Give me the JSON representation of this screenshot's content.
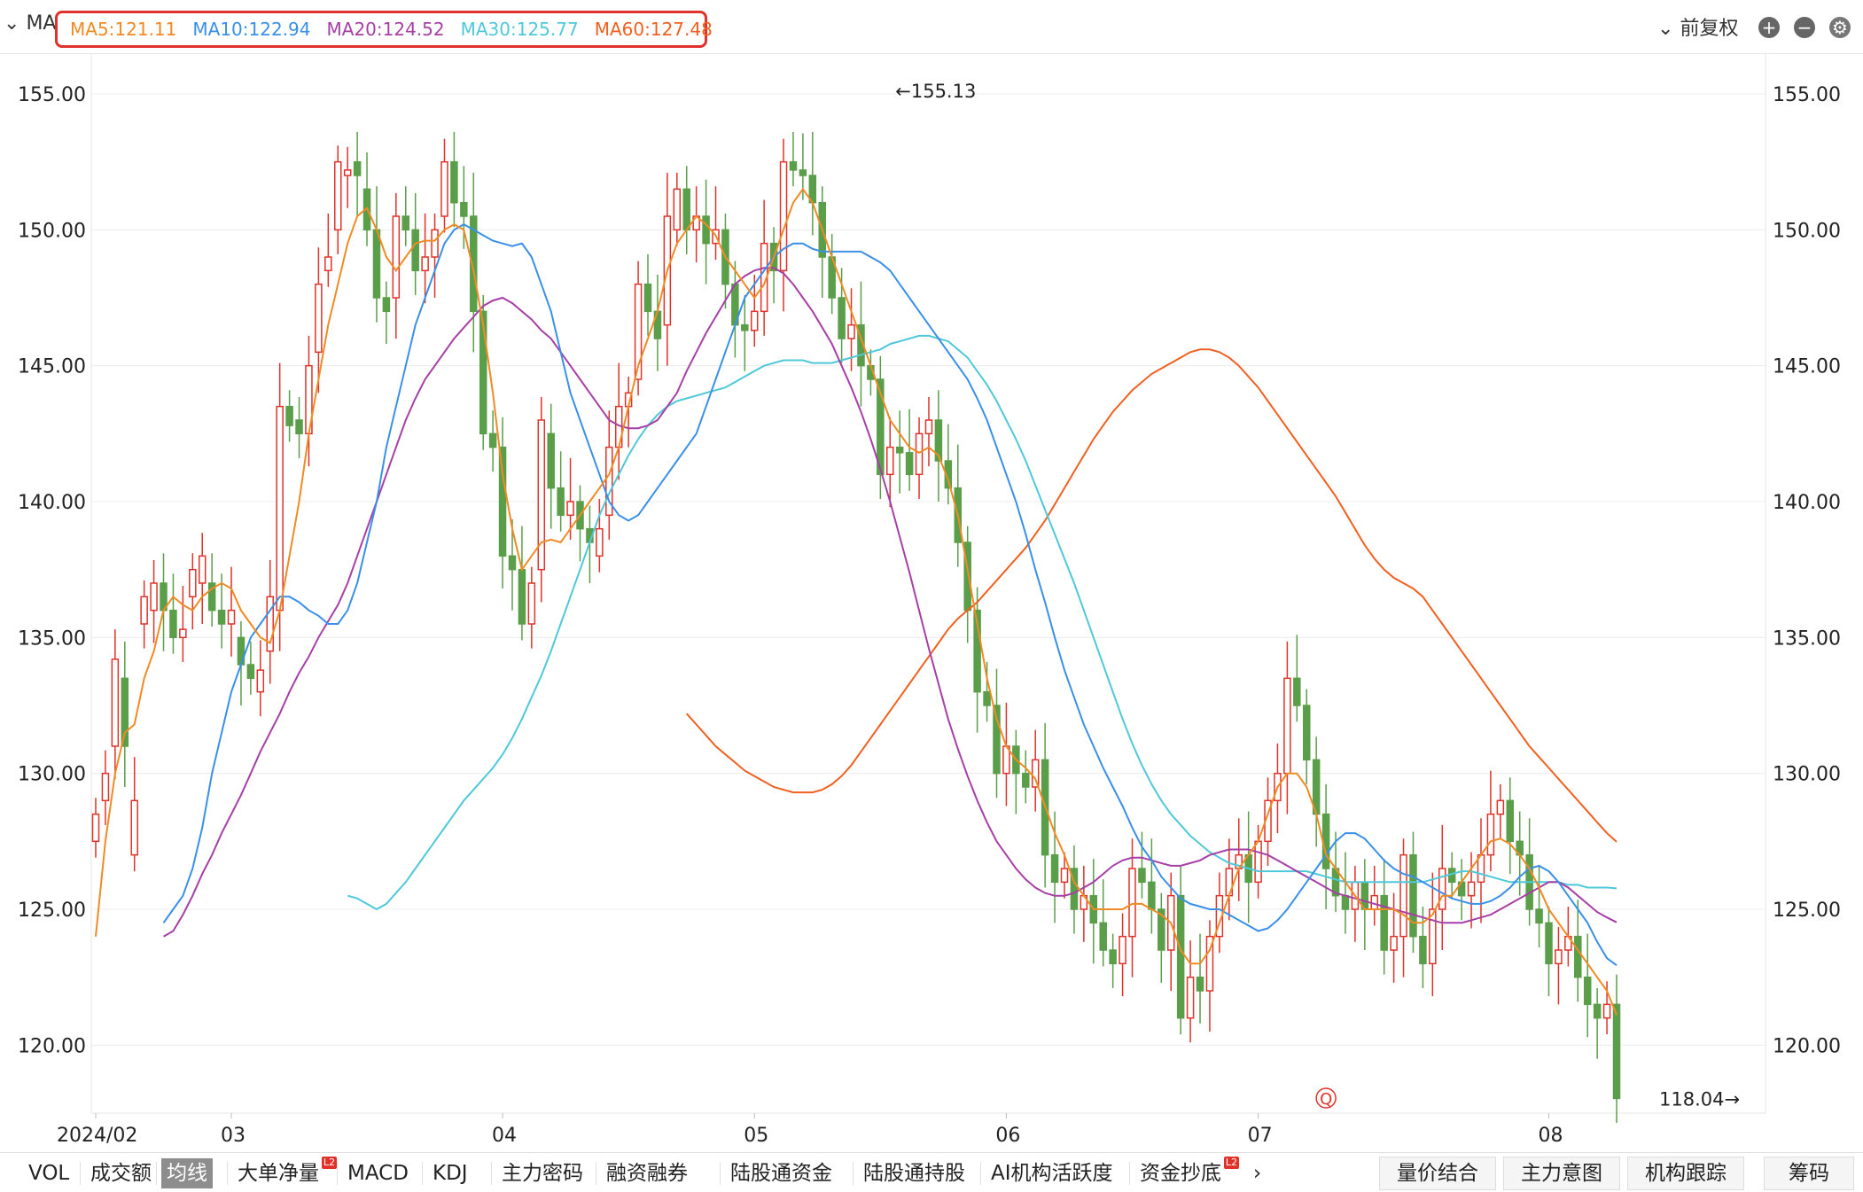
{
  "toolbar": {
    "indicator_label": "MA",
    "ma": [
      {
        "label": "MA5:121.11",
        "color": "#f08a24"
      },
      {
        "label": "MA10:122.94",
        "color": "#3a8fe8"
      },
      {
        "label": "MA20:124.52",
        "color": "#a63fa6"
      },
      {
        "label": "MA30:125.77",
        "color": "#4fc8d9"
      },
      {
        "label": "MA60:127.48",
        "color": "#f06020"
      }
    ],
    "adjust_label": "前复权",
    "plus_icon": "plus-circle-icon",
    "minus_icon": "minus-circle-icon",
    "settings_icon": "gear-icon"
  },
  "chart_data": {
    "type": "candlestick",
    "y_ticks": [
      "155.00",
      "150.00",
      "145.00",
      "140.00",
      "135.00",
      "130.00",
      "125.00",
      "120.00"
    ],
    "y_tick_values": [
      155,
      150,
      145,
      140,
      135,
      130,
      125,
      120
    ],
    "ylim": [
      117.5,
      156.5
    ],
    "x_labels": [
      {
        "label": "2024/02",
        "i": 0
      },
      {
        "label": "03",
        "i": 14
      },
      {
        "label": "04",
        "i": 42
      },
      {
        "label": "05",
        "i": 68
      },
      {
        "label": "06",
        "i": 94
      },
      {
        "label": "07",
        "i": 120
      },
      {
        "label": "08",
        "i": 150
      }
    ],
    "max_label": "←155.13",
    "max_value": 155.13,
    "max_index": 82,
    "min_label": "118.04→",
    "min_value": 118.04,
    "min_index": 171,
    "marker_label": "Q",
    "marker_index": 127,
    "up_color": "#e0322a",
    "down_color": "#5a9e4a",
    "closes": [
      128.5,
      130.0,
      134.2,
      131.0,
      129.0,
      136.5,
      137.0,
      136.0,
      135.0,
      135.3,
      137.5,
      138.0,
      136.0,
      135.5,
      136.0,
      134.0,
      133.5,
      133.8,
      136.5,
      143.5,
      142.8,
      142.5,
      145.0,
      148.0,
      149.0,
      152.5,
      152.2,
      152.0,
      150.0,
      147.5,
      147.0,
      150.5,
      150.0,
      148.5,
      149.0,
      150.0,
      152.5,
      151.0,
      150.5,
      147.0,
      142.5,
      142.0,
      138.0,
      137.5,
      135.5,
      137.0,
      143.0,
      140.5,
      139.5,
      140.0,
      139.0,
      138.5,
      139.0,
      142.0,
      143.5,
      144.0,
      148.0,
      147.0,
      146.0,
      150.5,
      151.5,
      150.0,
      150.5,
      149.5,
      150.0,
      148.0,
      146.5,
      146.3,
      147.0,
      149.5,
      148.5,
      152.5,
      152.2,
      152.0,
      151.0,
      149.0,
      147.5,
      146.0,
      146.5,
      145.0,
      144.5,
      141.0,
      142.0,
      141.8,
      141.0,
      142.5,
      143.0,
      141.5,
      140.5,
      138.5,
      136.0,
      133.0,
      132.5,
      130.0,
      131.0,
      130.0,
      129.5,
      130.5,
      127.0,
      126.0,
      126.5,
      125.0,
      125.5,
      124.5,
      123.5,
      123.0,
      124.0,
      126.5,
      126.0,
      125.0,
      123.5,
      125.5,
      121.0,
      122.5,
      122.0,
      124.0,
      125.5,
      126.5,
      127.0,
      126.0,
      127.5,
      129.0,
      130.0,
      133.5,
      132.5,
      130.5,
      128.5,
      126.5,
      125.5,
      125.0,
      126.0,
      125.0,
      125.5,
      123.5,
      124.0,
      127.0,
      124.0,
      123.0,
      125.0,
      126.5,
      126.0,
      125.5,
      126.0,
      127.0,
      128.5,
      129.0,
      127.5,
      127.0,
      125.0,
      124.5,
      123.0,
      123.5,
      124.0,
      122.5,
      121.5,
      121.0,
      121.5,
      118.04
    ],
    "opens": [
      127.5,
      129.0,
      131.0,
      133.5,
      127.0,
      135.5,
      136.0,
      137.0,
      136.0,
      135.0,
      136.5,
      137.0,
      137.0,
      136.0,
      135.5,
      135.0,
      134.0,
      133.0,
      134.5,
      136.0,
      143.5,
      143.0,
      142.5,
      145.5,
      148.5,
      150.0,
      152.0,
      152.5,
      151.5,
      150.0,
      147.5,
      147.5,
      150.5,
      150.0,
      148.5,
      149.0,
      150.5,
      152.5,
      151.0,
      150.5,
      147.0,
      142.5,
      142.0,
      138.0,
      137.5,
      135.5,
      137.5,
      142.5,
      140.5,
      139.5,
      140.0,
      139.0,
      138.0,
      139.5,
      142.0,
      143.5,
      144.5,
      148.0,
      147.0,
      146.5,
      150.0,
      151.5,
      150.0,
      150.5,
      149.5,
      150.0,
      148.0,
      146.5,
      146.3,
      147.0,
      149.5,
      148.5,
      152.5,
      152.2,
      152.0,
      151.0,
      149.0,
      147.5,
      146.0,
      146.5,
      145.0,
      144.5,
      141.0,
      142.0,
      141.8,
      141.0,
      142.5,
      143.0,
      141.5,
      140.5,
      138.5,
      136.0,
      133.0,
      132.5,
      130.0,
      131.0,
      130.0,
      129.5,
      130.5,
      127.0,
      126.0,
      126.5,
      125.0,
      125.5,
      124.5,
      123.5,
      123.0,
      124.0,
      126.5,
      126.0,
      125.0,
      123.5,
      125.5,
      121.0,
      122.5,
      122.0,
      124.0,
      125.5,
      126.5,
      127.0,
      126.0,
      127.5,
      129.0,
      130.0,
      133.5,
      132.5,
      130.5,
      128.5,
      126.5,
      125.5,
      125.0,
      126.0,
      125.0,
      125.5,
      123.5,
      124.0,
      127.0,
      124.0,
      123.0,
      125.0,
      126.5,
      126.0,
      125.5,
      126.0,
      127.0,
      128.5,
      129.0,
      127.5,
      127.0,
      125.0,
      124.5,
      123.0,
      123.5,
      124.0,
      122.5,
      121.5,
      121.0,
      121.5
    ],
    "ma5": [
      124.0,
      127.5,
      130.0,
      131.5,
      131.8,
      133.5,
      134.5,
      136.0,
      136.5,
      136.2,
      136.0,
      136.5,
      136.8,
      137.0,
      136.8,
      136.0,
      135.5,
      135.0,
      134.8,
      136.0,
      138.0,
      140.0,
      142.5,
      144.5,
      146.5,
      148.0,
      149.5,
      150.5,
      150.8,
      150.0,
      149.0,
      148.5,
      149.0,
      149.5,
      149.6,
      149.6,
      150.0,
      150.2,
      150.0,
      148.5,
      146.5,
      144.0,
      141.0,
      139.0,
      137.5,
      138.0,
      138.5,
      138.6,
      138.5,
      139.0,
      139.5,
      140.0,
      140.5,
      141.0,
      142.0,
      143.5,
      145.0,
      146.0,
      147.0,
      148.5,
      149.5,
      150.0,
      150.5,
      150.2,
      149.8,
      149.0,
      148.5,
      148.0,
      147.5,
      148.0,
      149.0,
      150.0,
      151.0,
      151.5,
      151.0,
      150.0,
      149.0,
      148.0,
      147.0,
      146.0,
      145.0,
      144.0,
      143.0,
      142.5,
      142.0,
      141.8,
      142.0,
      141.7,
      140.8,
      139.5,
      137.5,
      135.5,
      133.5,
      132.0,
      131.0,
      130.5,
      130.2,
      129.8,
      128.8,
      127.8,
      127.0,
      126.0,
      125.5,
      125.0,
      125.0,
      125.0,
      125.0,
      125.2,
      125.2,
      125.0,
      124.8,
      124.5,
      123.5,
      123.0,
      123.0,
      123.5,
      124.5,
      125.5,
      126.5,
      127.0,
      127.5,
      128.5,
      129.5,
      130.0,
      130.0,
      129.5,
      128.5,
      127.0,
      126.5,
      126.0,
      125.5,
      125.0,
      125.0,
      125.0,
      125.0,
      124.8,
      124.5,
      124.5,
      124.8,
      125.5,
      125.5,
      126.0,
      126.5,
      127.0,
      127.5,
      127.6,
      127.4,
      127.0,
      126.5,
      125.8,
      125.0,
      124.5,
      124.0,
      123.5,
      123.0,
      122.5,
      122.0,
      121.11
    ],
    "ma10": [
      124.5,
      125.0,
      125.5,
      126.5,
      128.0,
      130.0,
      131.5,
      133.0,
      134.0,
      135.0,
      135.5,
      136.0,
      136.5,
      136.5,
      136.3,
      136.0,
      135.8,
      135.5,
      135.5,
      136.0,
      137.0,
      138.5,
      140.0,
      142.0,
      143.5,
      145.0,
      146.5,
      147.5,
      148.5,
      149.5,
      150.0,
      150.2,
      150.0,
      149.8,
      149.6,
      149.5,
      149.4,
      149.5,
      149.0,
      148.0,
      147.0,
      145.5,
      144.0,
      143.0,
      142.0,
      141.0,
      140.0,
      139.5,
      139.3,
      139.5,
      140.0,
      140.5,
      141.0,
      141.5,
      142.0,
      142.5,
      143.5,
      144.5,
      145.5,
      146.5,
      147.5,
      148.0,
      148.5,
      149.0,
      149.3,
      149.5,
      149.5,
      149.3,
      149.2,
      149.2,
      149.2,
      149.2,
      149.2,
      149.0,
      148.8,
      148.5,
      148.0,
      147.5,
      147.0,
      146.5,
      146.0,
      145.5,
      145.0,
      144.5,
      143.8,
      143.0,
      142.0,
      141.0,
      140.0,
      138.8,
      137.5,
      136.3,
      135.0,
      133.8,
      132.8,
      131.8,
      131.0,
      130.2,
      129.5,
      128.8,
      128.0,
      127.3,
      126.8,
      126.2,
      125.8,
      125.4,
      125.2,
      125.1,
      125.0,
      125.0,
      124.8,
      124.6,
      124.4,
      124.2,
      124.3,
      124.6,
      125.0,
      125.5,
      126.0,
      126.5,
      127.0,
      127.5,
      127.8,
      127.8,
      127.6,
      127.2,
      126.8,
      126.5,
      126.3,
      126.2,
      126.0,
      125.8,
      125.6,
      125.4,
      125.3,
      125.2,
      125.2,
      125.3,
      125.5,
      125.8,
      126.2,
      126.5,
      126.6,
      126.4,
      126.0,
      125.5,
      125.0,
      124.5,
      123.8,
      123.2,
      122.94
    ],
    "ma20": [
      124.0,
      124.2,
      124.8,
      125.5,
      126.3,
      127.0,
      127.8,
      128.5,
      129.2,
      130.0,
      130.8,
      131.5,
      132.2,
      133.0,
      133.7,
      134.3,
      135.0,
      135.6,
      136.2,
      137.0,
      138.0,
      139.0,
      140.0,
      141.0,
      142.0,
      143.0,
      143.8,
      144.5,
      145.0,
      145.5,
      146.0,
      146.4,
      146.8,
      147.2,
      147.4,
      147.5,
      147.3,
      147.0,
      146.7,
      146.3,
      146.0,
      145.5,
      145.0,
      144.5,
      144.0,
      143.5,
      143.0,
      142.8,
      142.7,
      142.7,
      142.8,
      143.0,
      143.5,
      144.0,
      144.8,
      145.5,
      146.2,
      146.8,
      147.4,
      148.0,
      148.3,
      148.5,
      148.6,
      148.6,
      148.4,
      148.0,
      147.5,
      147.0,
      146.4,
      145.8,
      145.0,
      144.2,
      143.3,
      142.3,
      141.2,
      140.0,
      138.7,
      137.4,
      136.0,
      134.6,
      133.3,
      132.0,
      130.9,
      129.9,
      129.0,
      128.2,
      127.5,
      127.0,
      126.5,
      126.1,
      125.8,
      125.6,
      125.5,
      125.5,
      125.6,
      125.8,
      126.0,
      126.3,
      126.6,
      126.8,
      126.9,
      126.9,
      126.8,
      126.7,
      126.6,
      126.6,
      126.7,
      126.8,
      127.0,
      127.1,
      127.2,
      127.2,
      127.2,
      127.1,
      127.0,
      126.8,
      126.6,
      126.4,
      126.2,
      126.0,
      125.8,
      125.6,
      125.5,
      125.4,
      125.3,
      125.2,
      125.1,
      125.0,
      124.9,
      124.8,
      124.7,
      124.6,
      124.5,
      124.5,
      124.5,
      124.6,
      124.7,
      124.8,
      125.0,
      125.2,
      125.4,
      125.6,
      125.8,
      126.0,
      126.0,
      125.8,
      125.5,
      125.2,
      124.9,
      124.7,
      124.52
    ],
    "ma30": [
      125.5,
      125.4,
      125.2,
      125.0,
      125.2,
      125.6,
      126.0,
      126.5,
      127.0,
      127.5,
      128.0,
      128.5,
      129.0,
      129.4,
      129.8,
      130.2,
      130.7,
      131.3,
      132.0,
      132.8,
      133.6,
      134.5,
      135.5,
      136.5,
      137.5,
      138.5,
      139.5,
      140.3,
      141.0,
      141.7,
      142.3,
      142.8,
      143.2,
      143.5,
      143.7,
      143.8,
      143.9,
      144.0,
      144.1,
      144.2,
      144.4,
      144.6,
      144.8,
      145.0,
      145.1,
      145.2,
      145.2,
      145.2,
      145.1,
      145.1,
      145.1,
      145.2,
      145.3,
      145.4,
      145.5,
      145.6,
      145.8,
      145.9,
      146.0,
      146.1,
      146.1,
      146.0,
      145.9,
      145.6,
      145.3,
      144.8,
      144.3,
      143.7,
      143.0,
      142.3,
      141.5,
      140.6,
      139.7,
      138.8,
      137.9,
      137.0,
      136.0,
      135.0,
      134.0,
      133.0,
      132.0,
      131.1,
      130.3,
      129.6,
      129.0,
      128.5,
      128.1,
      127.7,
      127.4,
      127.1,
      126.9,
      126.7,
      126.6,
      126.5,
      126.4,
      126.4,
      126.4,
      126.4,
      126.4,
      126.4,
      126.3,
      126.2,
      126.1,
      126.0,
      126.0,
      126.0,
      126.0,
      126.0,
      126.0,
      126.0,
      126.0,
      126.0,
      126.1,
      126.2,
      126.3,
      126.4,
      126.4,
      126.3,
      126.2,
      126.1,
      126.0,
      126.0,
      126.0,
      126.0,
      126.0,
      126.0,
      125.9,
      125.9,
      125.8,
      125.8,
      125.8,
      125.77
    ],
    "ma60": [
      132.2,
      131.8,
      131.4,
      131.0,
      130.7,
      130.4,
      130.1,
      129.9,
      129.7,
      129.5,
      129.4,
      129.3,
      129.3,
      129.3,
      129.4,
      129.6,
      129.9,
      130.3,
      130.8,
      131.3,
      131.8,
      132.3,
      132.8,
      133.3,
      133.8,
      134.3,
      134.8,
      135.3,
      135.7,
      136.0,
      136.3,
      136.7,
      137.1,
      137.5,
      137.9,
      138.3,
      138.8,
      139.3,
      139.9,
      140.5,
      141.1,
      141.7,
      142.3,
      142.8,
      143.3,
      143.7,
      144.1,
      144.4,
      144.7,
      144.9,
      145.1,
      145.3,
      145.5,
      145.6,
      145.6,
      145.5,
      145.3,
      145.0,
      144.6,
      144.2,
      143.7,
      143.2,
      142.7,
      142.2,
      141.7,
      141.2,
      140.7,
      140.2,
      139.6,
      139.0,
      138.4,
      137.9,
      137.5,
      137.2,
      137.0,
      136.8,
      136.5,
      136.0,
      135.5,
      135.0,
      134.5,
      134.0,
      133.5,
      133.0,
      132.5,
      132.0,
      131.5,
      131.0,
      130.6,
      130.2,
      129.8,
      129.4,
      129.0,
      128.6,
      128.2,
      127.8,
      127.48
    ]
  },
  "bottom_tabs": [
    {
      "label": "VOL",
      "badge": ""
    },
    {
      "label": "成交额",
      "badge": ""
    },
    {
      "label": "均线",
      "badge": "",
      "active": true
    },
    {
      "label": "大单净量",
      "badge": "L2"
    },
    {
      "label": "MACD",
      "badge": ""
    },
    {
      "label": "KDJ",
      "badge": ""
    },
    {
      "label": "主力密码",
      "badge": ""
    },
    {
      "label": "融资融券",
      "badge": ""
    },
    {
      "label": "陆股通资金",
      "badge": ""
    },
    {
      "label": "陆股通持股",
      "badge": ""
    },
    {
      "label": "AI机构活跃度",
      "badge": ""
    },
    {
      "label": "资金抄底",
      "badge": "L2"
    }
  ],
  "more_arrow": "›",
  "right_buttons": [
    "量价结合",
    "主力意图",
    "机构跟踪"
  ],
  "chip_button": "筹码"
}
